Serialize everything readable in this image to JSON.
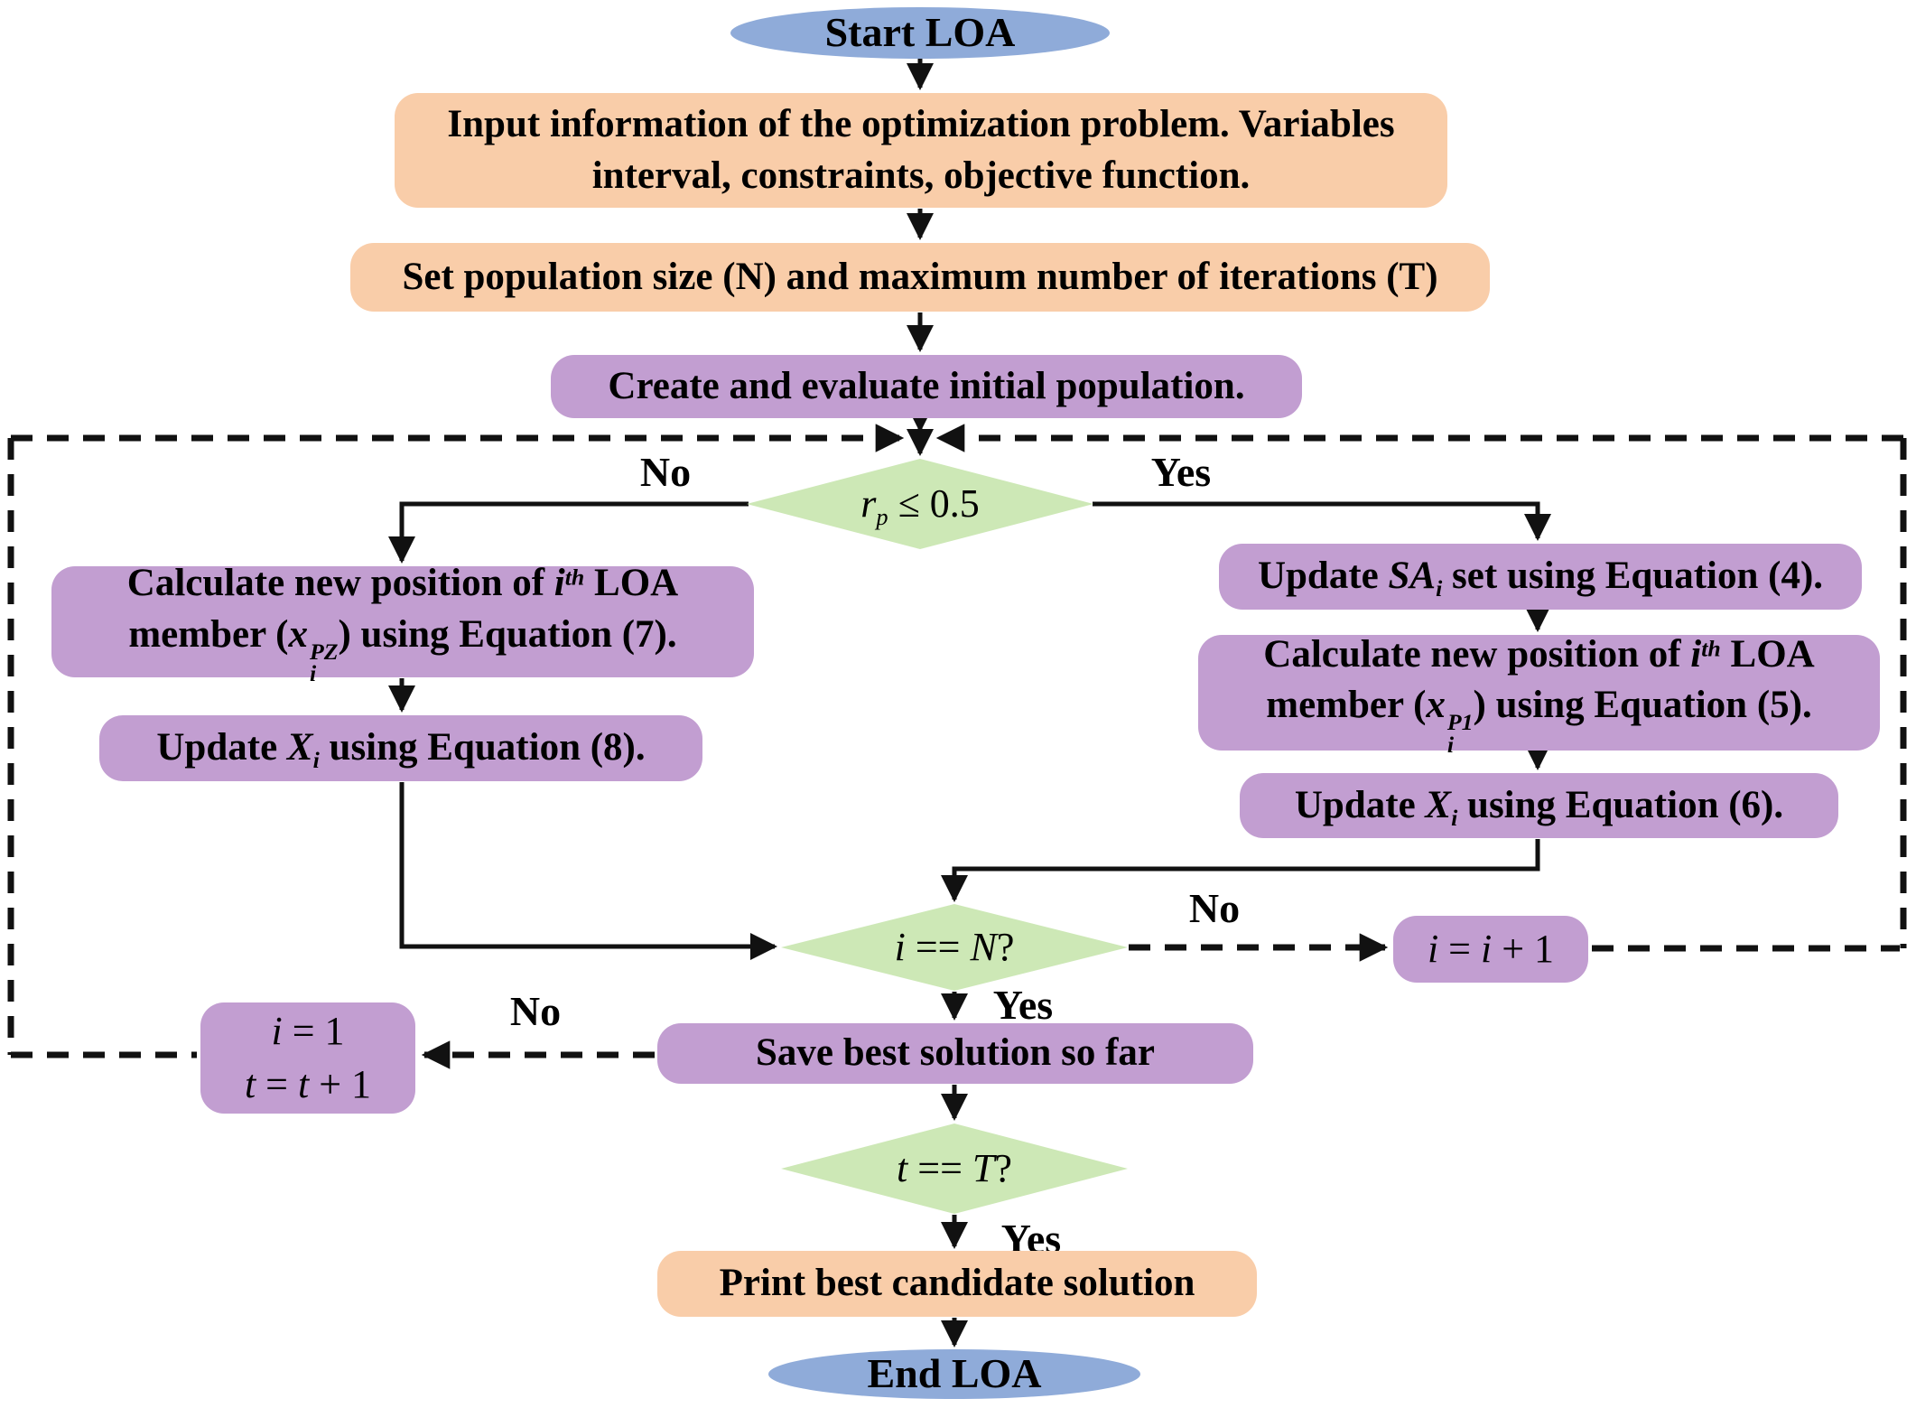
{
  "palette": {
    "blue": "#8fabd9",
    "orange": "#f9cda9",
    "purple": "#c29ed1",
    "green": "#cde8b6",
    "line": "#111111",
    "background": "#ffffff"
  },
  "nodes": {
    "start": [
      {
        "t": "Start LOA"
      }
    ],
    "input": [
      {
        "t": "Input information of the optimization problem. Variables"
      },
      {
        "br": true
      },
      {
        "t": "interval, constraints, objective function."
      }
    ],
    "setpop": [
      {
        "t": "Set population size (N) and maximum number of iterations (T)"
      }
    ],
    "create": [
      {
        "t": "Create and evaluate initial population."
      }
    ],
    "rp": [
      {
        "t": "r",
        "i": true
      },
      {
        "t": "p",
        "sub": true,
        "i": true
      },
      {
        "t": " ≤ 0.5"
      }
    ],
    "calc_pz": [
      {
        "t": "Calculate new position of "
      },
      {
        "t": "i",
        "i": true
      },
      {
        "t": "th",
        "sup": true,
        "i": true
      },
      {
        "t": " LOA"
      },
      {
        "br": true
      },
      {
        "t": "member ("
      },
      {
        "t": "x",
        "i": true
      },
      {
        "stack": {
          "top": "PZ",
          "bottom": "i"
        }
      },
      {
        "t": ") using Equation (7)."
      }
    ],
    "update_x8": [
      {
        "t": "Update "
      },
      {
        "t": "X",
        "i": true
      },
      {
        "t": "i",
        "sub": true,
        "i": true
      },
      {
        "t": " using Equation (8)."
      }
    ],
    "update_sa": [
      {
        "t": "Update "
      },
      {
        "t": "SA",
        "i": true
      },
      {
        "t": "i",
        "sub": true,
        "i": true
      },
      {
        "t": " set using Equation (4)."
      }
    ],
    "calc_p1": [
      {
        "t": "Calculate new position of "
      },
      {
        "t": "i",
        "i": true
      },
      {
        "t": "th",
        "sup": true,
        "i": true
      },
      {
        "t": " LOA"
      },
      {
        "br": true
      },
      {
        "t": "member ("
      },
      {
        "t": "x",
        "i": true
      },
      {
        "stack": {
          "top": "P1",
          "bottom": "i"
        }
      },
      {
        "t": ") using Equation (5)."
      }
    ],
    "update_x6": [
      {
        "t": "Update "
      },
      {
        "t": "X",
        "i": true
      },
      {
        "t": "i",
        "sub": true,
        "i": true
      },
      {
        "t": " using Equation (6)."
      }
    ],
    "i_eq_n": [
      {
        "t": "i",
        "i": true
      },
      {
        "t": " == "
      },
      {
        "t": "N",
        "i": true
      },
      {
        "t": "?"
      }
    ],
    "increment_i": [
      {
        "t": "i",
        "i": true
      },
      {
        "t": " = "
      },
      {
        "t": "i",
        "i": true
      },
      {
        "t": " + 1"
      }
    ],
    "save": [
      {
        "t": "Save best solution so far"
      }
    ],
    "reset": [
      {
        "t": "i",
        "i": true
      },
      {
        "t": " = 1"
      },
      {
        "br": true
      },
      {
        "t": "t",
        "i": true
      },
      {
        "t": " = "
      },
      {
        "t": "t",
        "i": true
      },
      {
        "t": " + 1"
      }
    ],
    "t_eq_t": [
      {
        "t": "t",
        "i": true
      },
      {
        "t": " == "
      },
      {
        "t": "T",
        "i": true
      },
      {
        "t": "?"
      }
    ],
    "print": [
      {
        "t": "Print best candidate solution"
      }
    ],
    "end": [
      {
        "t": "End LOA"
      }
    ]
  },
  "labels": {
    "rp_no": "No",
    "rp_yes": "Yes",
    "in_no": "No",
    "in_yes": "Yes",
    "tt_no": "No",
    "tt_yes": "Yes"
  }
}
